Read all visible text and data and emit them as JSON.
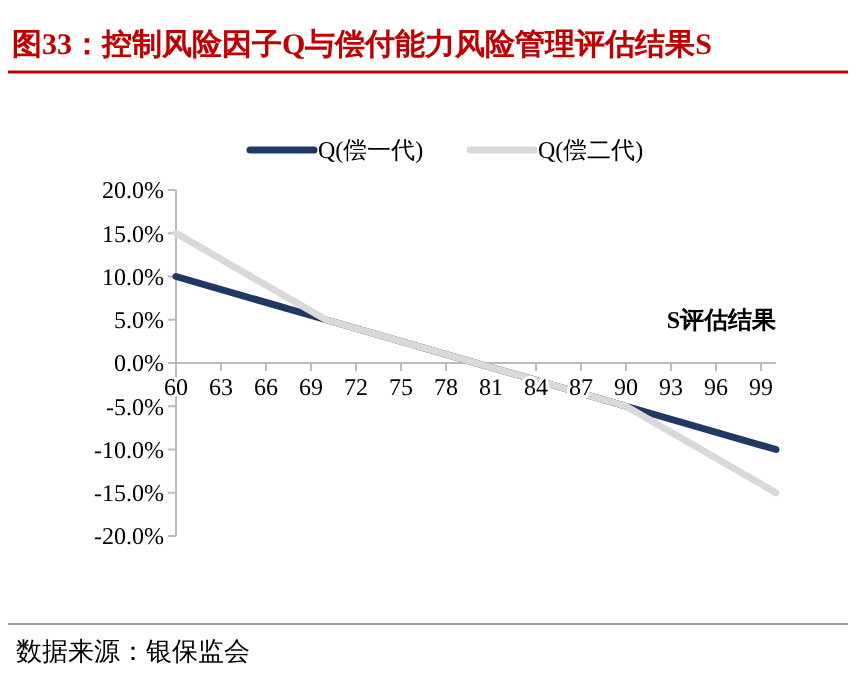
{
  "chart_data": {
    "type": "line",
    "title": "图33：控制风险因子Q与偿付能力风险管理评估结果S",
    "xlabel": "S评估结果",
    "annotations": [
      "数据来源：银保监会"
    ],
    "series": [
      {
        "name": "Q(偿一代)",
        "color": "#1f3864",
        "x": [
          60,
          70,
          90,
          100
        ],
        "values": [
          10,
          5,
          -5,
          -10
        ]
      },
      {
        "name": "Q(偿二代)",
        "color": "#d9d9d9",
        "x": [
          60,
          70,
          90,
          100
        ],
        "values": [
          15,
          5,
          -5,
          -15
        ]
      }
    ],
    "xlim": [
      60,
      100
    ],
    "xticks": [
      60,
      63,
      66,
      69,
      72,
      75,
      78,
      81,
      84,
      87,
      90,
      93,
      96,
      99
    ],
    "ylim": [
      -20,
      20
    ],
    "yticks": [
      {
        "value": 20,
        "label": "20.0%"
      },
      {
        "value": 15,
        "label": "15.0%"
      },
      {
        "value": 10,
        "label": "10.0%"
      },
      {
        "value": 5,
        "label": "5.0%"
      },
      {
        "value": 0,
        "label": "0.0%"
      },
      {
        "value": -5,
        "label": "-5.0%"
      },
      {
        "value": -10,
        "label": "-10.0%"
      },
      {
        "value": -15,
        "label": "-15.0%"
      },
      {
        "value": -20,
        "label": "-20.0%"
      }
    ],
    "grid": false,
    "legend": "top",
    "marker": "none",
    "line_style": "solid"
  }
}
